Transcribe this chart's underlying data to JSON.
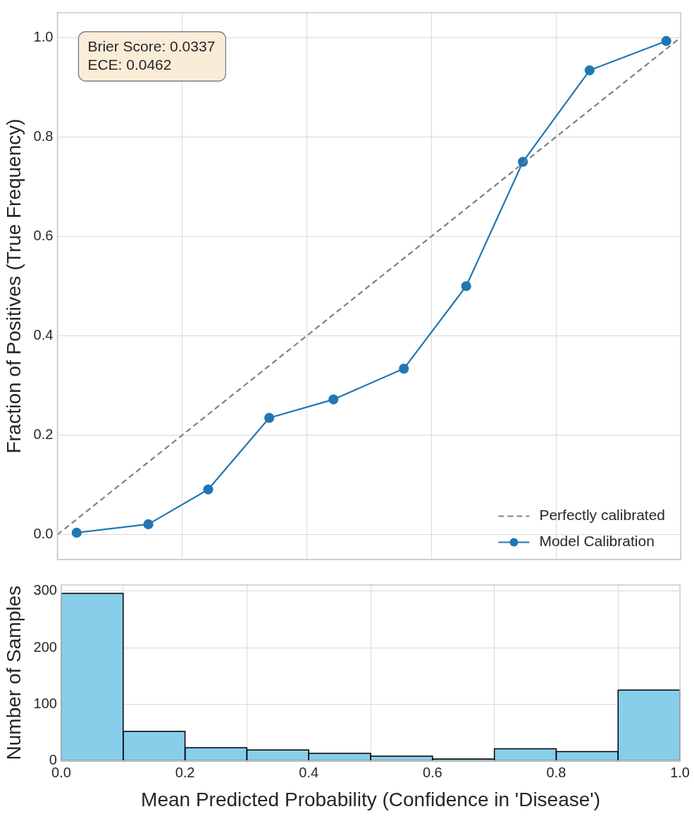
{
  "chart_data": [
    {
      "type": "line",
      "ylabel": "Fraction of Positives (True Frequency)",
      "xlim": [
        0,
        1
      ],
      "xticks": [
        {
          "value": 0,
          "label": null
        },
        {
          "value": 0.2,
          "label": null
        },
        {
          "value": 0.4,
          "label": null
        },
        {
          "value": 0.6,
          "label": null
        },
        {
          "value": 0.8,
          "label": null
        },
        {
          "value": 1,
          "label": null
        }
      ],
      "ylim": [
        -0.05,
        1.05
      ],
      "yticks": [
        {
          "value": 0,
          "label": "0.0"
        },
        0.2,
        0.4,
        0.6,
        0.8,
        {
          "value": 1,
          "label": "1.0"
        }
      ],
      "tick_labels": "y",
      "grid": true,
      "legend": "bottom right",
      "annotations": [
        "Brier Score: 0.0337",
        "ECE: 0.0462"
      ],
      "series": [
        {
          "name": "Perfectly calibrated",
          "type": "line",
          "color": "#808080",
          "line_style": "dashed",
          "marker": "none",
          "x": [
            0,
            1
          ],
          "values": [
            0,
            1
          ]
        },
        {
          "name": "Model Calibration",
          "type": "line",
          "color": "#1f77b4",
          "line_style": "solid",
          "marker": "circle",
          "x": [
            0.031,
            0.146,
            0.242,
            0.34,
            0.443,
            0.556,
            0.656,
            0.747,
            0.854,
            0.977
          ],
          "values": [
            0.004,
            0.021,
            0.091,
            0.235,
            0.272,
            0.334,
            0.5,
            0.75,
            0.934,
            0.993
          ]
        }
      ]
    },
    {
      "type": "histogram",
      "xlabel": "Mean Predicted Probability (Confidence in 'Disease')",
      "ylabel": "Number of Samples",
      "bins": [
        0,
        0.1,
        0.2,
        0.3,
        0.4,
        0.5,
        0.6,
        0.7,
        0.8,
        0.9,
        1.0
      ],
      "values": [
        296,
        52,
        23,
        19,
        13,
        8,
        3,
        21,
        16,
        125
      ],
      "color": "#87ceeb",
      "xlim": [
        0,
        1
      ],
      "xticks": [
        {
          "value": 0,
          "label": "0.0"
        },
        0.2,
        0.4,
        0.6,
        0.8,
        {
          "value": 1,
          "label": "1.0"
        }
      ],
      "ylim": [
        0,
        311
      ],
      "yticks": [
        0,
        100,
        200,
        300
      ],
      "grid": true
    }
  ]
}
